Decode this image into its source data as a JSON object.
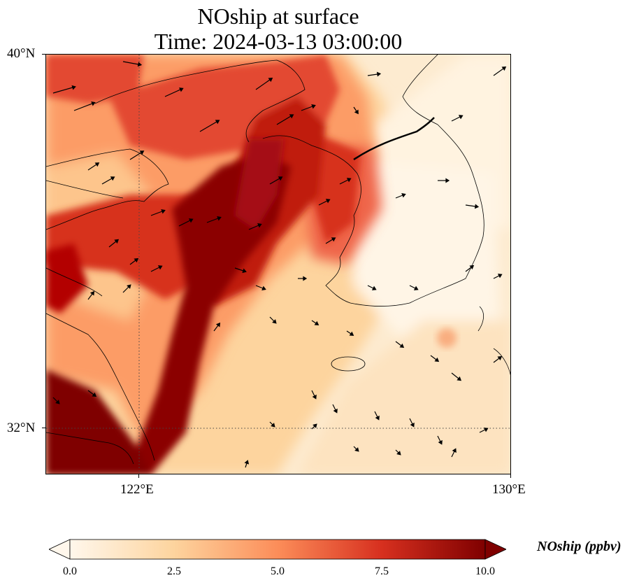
{
  "title": {
    "line1": "NOship at surface",
    "line2": "Time: 2024-03-13 03:00:00"
  },
  "map": {
    "lat_ticks": [
      "40°N",
      "32°N"
    ],
    "lon_ticks": [
      "122°E",
      "130°E"
    ],
    "extent": {
      "lon_min": 120,
      "lon_max": 130,
      "lat_min": 31,
      "lat_max": 40
    },
    "gridlines": {
      "lon": 122,
      "lat": 32,
      "style": "dotted"
    },
    "field": "NOship surface concentration",
    "vectors": "wind arrows"
  },
  "colorbar": {
    "label": "NOship (ppbv)",
    "ticks": [
      "0.0",
      "2.5",
      "5.0",
      "7.5",
      "10.0"
    ],
    "range": [
      0,
      10
    ],
    "colormap": "OrRd",
    "colors": [
      "#fff7ec",
      "#fdd49e",
      "#fc8d59",
      "#d7301f",
      "#7f0000"
    ],
    "extend": "both"
  }
}
